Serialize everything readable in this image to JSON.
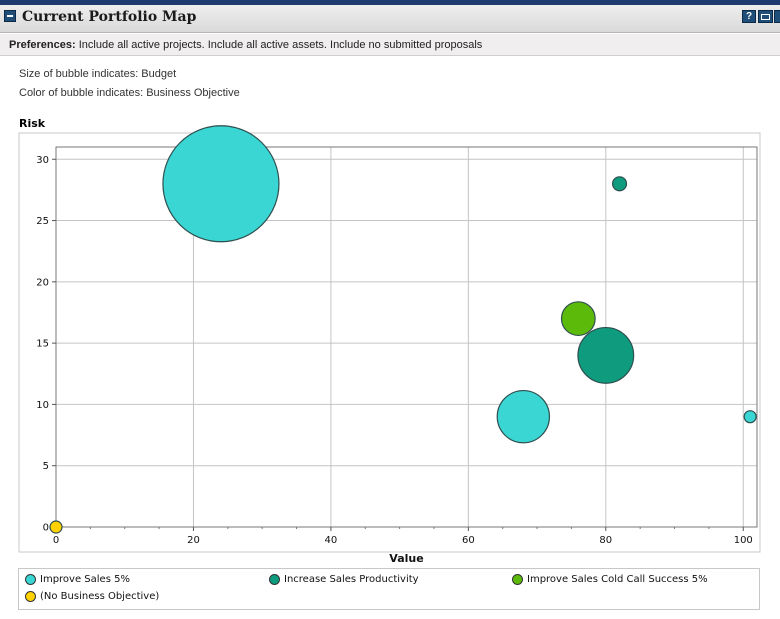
{
  "portlet": {
    "title": "Current Portfolio Map",
    "icons": [
      "help-icon",
      "edit-icon",
      "maximize-icon"
    ]
  },
  "preferences": {
    "label": "Preferences:",
    "text": "Include all active projects. Include all active assets. Include no submitted proposals"
  },
  "info": {
    "size_line": "Size of bubble indicates: Budget",
    "color_line": "Color of bubble indicates: Business Objective"
  },
  "chart_data": {
    "type": "scatter",
    "title": "",
    "xlabel": "Value",
    "ylabel": "Risk",
    "xlim": [
      0,
      102
    ],
    "ylim": [
      0,
      31
    ],
    "xticks": [
      0,
      20,
      40,
      60,
      80,
      100
    ],
    "yticks": [
      0,
      5,
      10,
      15,
      20,
      25,
      30
    ],
    "grid": true,
    "legend_position": "bottom",
    "series": [
      {
        "name": "Improve Sales 5%",
        "color": "#3ad6d4",
        "points": [
          {
            "x": 24,
            "y": 28,
            "size": 1.0
          },
          {
            "x": 68,
            "y": 9,
            "size": 0.45
          },
          {
            "x": 101,
            "y": 9,
            "size": 0.08
          }
        ]
      },
      {
        "name": "Increase Sales Productivity",
        "color": "#0e9b7e",
        "points": [
          {
            "x": 80,
            "y": 14,
            "size": 0.48
          },
          {
            "x": 82,
            "y": 28,
            "size": 0.12
          }
        ]
      },
      {
        "name": "Improve Sales Cold Call Success 5%",
        "color": "#5cbb0a",
        "points": [
          {
            "x": 76,
            "y": 17,
            "size": 0.29
          }
        ]
      },
      {
        "name": "(No Business Objective)",
        "color": "#ffd200",
        "points": [
          {
            "x": 0,
            "y": 0,
            "size": 0.07
          }
        ]
      }
    ]
  }
}
